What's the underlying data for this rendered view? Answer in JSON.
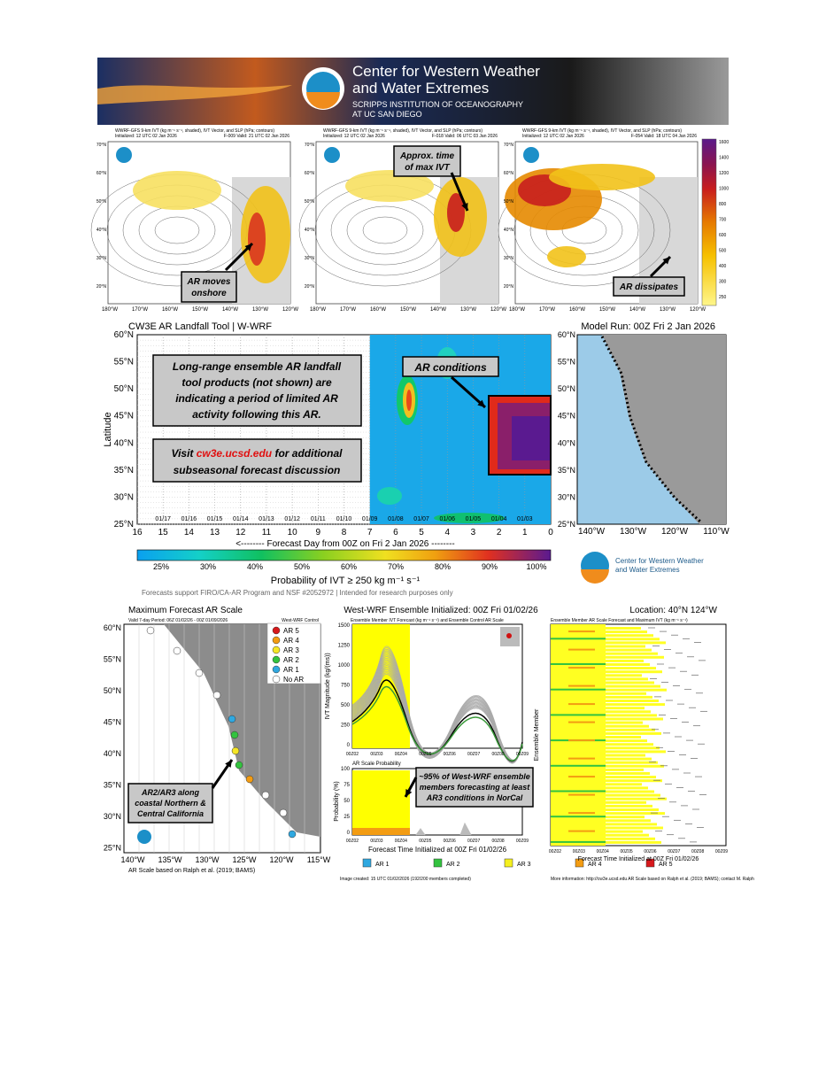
{
  "header": {
    "title": [
      "Center for Western Weather",
      "and Water Extremes"
    ],
    "institution": [
      "SCRIPPS INSTITUTION  OF OCEANOGRAPHY",
      "AT UC SAN DIEGO"
    ]
  },
  "ivt_maps": {
    "panels": [
      {
        "title": "WWRF-GFS 9-km IVT (kg m⁻¹ s⁻¹, shaded), IVT Vector, and SLP (hPa; contours)",
        "init": "Initialized: 12 UTC 02 Jan 2026",
        "valid": "F-009  Valid: 21 UTC 02 Jan 2026",
        "annotation": [
          "AR moves",
          "onshore"
        ]
      },
      {
        "title": "WWRF-GFS 9-km IVT (kg m⁻¹ s⁻¹, shaded), IVT Vector, and SLP (hPa; contours)",
        "init": "Initialized: 12 UTC 02 Jan 2026",
        "valid": "F-018  Valid: 06 UTC 03 Jan 2026",
        "annotation": [
          "Approx. time",
          "of max IVT"
        ]
      },
      {
        "title": "WWRF-GFS 9-km IVT (kg m⁻¹ s⁻¹, shaded), IVT Vector, and SLP (hPa; contours)",
        "init": "Initialized: 12 UTC 02 Jan 2026",
        "valid": "F-054  Valid: 18 UTC 04 Jan 2026",
        "annotation": [
          "AR dissipates"
        ]
      }
    ],
    "lat_labels": [
      "70°N",
      "60°N",
      "50°N",
      "40°N",
      "30°N",
      "20°N"
    ],
    "lon_labels": [
      "180°W",
      "170°W",
      "160°W",
      "150°W",
      "140°W",
      "130°W",
      "120°W"
    ],
    "colorbar_ticks": [
      1600,
      1400,
      1200,
      1000,
      800,
      700,
      600,
      500,
      400,
      300,
      250
    ]
  },
  "landfall": {
    "title": "CW3E AR Landfall Tool | W-WRF",
    "model_run": "Model Run: 00Z Fri 2 Jan 2026",
    "y_label": "Latitude",
    "lat_ticks": [
      "60°N",
      "55°N",
      "50°N",
      "45°N",
      "40°N",
      "35°N",
      "30°N",
      "25°N"
    ],
    "forecast_days": [
      16,
      15,
      14,
      13,
      12,
      11,
      10,
      9,
      8,
      7,
      6,
      5,
      4,
      3,
      2,
      1,
      0
    ],
    "dates": [
      "01/17",
      "01/16",
      "01/15",
      "01/14",
      "01/13",
      "01/12",
      "01/11",
      "01/10",
      "01/09",
      "01/08",
      "01/07",
      "01/06",
      "01/05",
      "01/04",
      "01/03"
    ],
    "x_label": "<-------- Forecast Day from 00Z on Fri 2 Jan 2026 --------",
    "callout": [
      "Long-range ensemble AR landfall",
      "tool products (not shown) are",
      "indicating a period of limited AR",
      "activity following this AR."
    ],
    "visit": {
      "before": "Visit ",
      "link": "cw3e.ucsd.edu",
      "after": " for additional",
      "line2": "subseasonal forecast discussion"
    },
    "annotation": "AR conditions",
    "map_lon_ticks": [
      "140°W",
      "130°W",
      "120°W",
      "110°W"
    ],
    "colorbar_title": "Probability of IVT ≥ 250 kg m⁻¹ s⁻¹",
    "colorbar_ticks": [
      "25%",
      "30%",
      "40%",
      "50%",
      "60%",
      "70%",
      "80%",
      "90%",
      "100%"
    ],
    "logo": [
      "Center for Western Weather",
      "and Water Extremes"
    ],
    "footnote": "Forecasts support FIRO/CA-AR Program and NSF #2052972 | Intended for research purposes only"
  },
  "ar_scale_map": {
    "title": "Maximum Forecast AR Scale",
    "valid": "Valid 7-day Period: 06Z 01/02/26 - 00Z 01/09/2026",
    "model": "West-WRF Control",
    "legend": [
      {
        "label": "AR 5",
        "color": "#d7191c"
      },
      {
        "label": "AR 4",
        "color": "#f39c12"
      },
      {
        "label": "AR 3",
        "color": "#f5e626"
      },
      {
        "label": "AR 2",
        "color": "#33c33f"
      },
      {
        "label": "AR 1",
        "color": "#2fa8e0"
      },
      {
        "label": "No AR",
        "color": "#ffffff"
      }
    ],
    "lat_ticks": [
      "60°N",
      "55°N",
      "50°N",
      "45°N",
      "40°N",
      "35°N",
      "30°N",
      "25°N"
    ],
    "lon_ticks": [
      "140°W",
      "135°W",
      "130°W",
      "125°W",
      "120°W",
      "115°W"
    ],
    "callout": [
      "AR2/AR3 along",
      "coastal Northern &",
      "Central California"
    ],
    "footnote": "AR Scale based on Ralph et al. (2019; BAMS)"
  },
  "ensemble": {
    "title": "West-WRF Ensemble Initialized: 00Z Fri 01/02/26",
    "panel_title": "Ensemble Member IVT Forecast (kg m⁻¹ s⁻¹) and Ensemble Control AR Scale",
    "y_label": "IVT Magnitude (kg/(ms))",
    "y_ticks": [
      1500,
      1250,
      1000,
      750,
      500,
      250,
      0
    ],
    "prob_title": "AR Scale Probability",
    "prob_label": "Probability (%)",
    "prob_ticks": [
      100,
      75,
      50,
      25,
      0
    ],
    "x_ticks": [
      "00Z02",
      "00Z03",
      "00Z04",
      "00Z05",
      "00Z06",
      "00Z07",
      "00Z08",
      "00Z09"
    ],
    "x_label": "Forecast Time Initialized at 00Z Fri 01/02/26",
    "callout": [
      "~95% of West-WRF ensemble",
      "members forecasting at least",
      "AR3 conditions in NorCal"
    ],
    "legend": [
      {
        "label": "AR 1",
        "color": "#2fa8e0"
      },
      {
        "label": "AR 2",
        "color": "#33c33f"
      },
      {
        "label": "AR 3",
        "color": "#f5f01e"
      },
      {
        "label": "AR 4",
        "color": "#f39c12"
      },
      {
        "label": "AR 5",
        "color": "#d7191c"
      }
    ],
    "footer": "Image created: 15 UTC 01/02/2026 (192/200 members completed)"
  },
  "member_panel": {
    "title": "Location: 40°N 124°W",
    "panel_title": "Ensemble Member AR Scale Forecast and Maximum IVT (kg m⁻¹ s⁻¹)",
    "y_label": "Ensemble Member",
    "x_ticks": [
      "00Z02",
      "00Z03",
      "00Z04",
      "00Z05",
      "00Z06",
      "00Z07",
      "00Z08",
      "00Z09"
    ],
    "x_label": "Forecast Time Initialized at 00Z Fri 01/02/26",
    "footer": "More information: http://cw3e.ucsd.edu  AR Scale based on Ralph et al. (2019; BAMS); contact M. Ralph"
  }
}
